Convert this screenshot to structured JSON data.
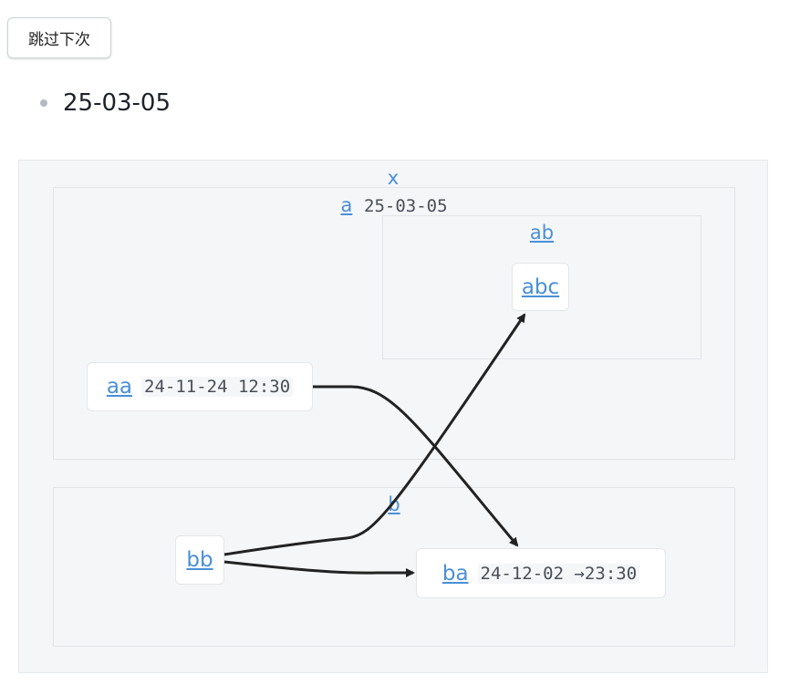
{
  "skip_button": {
    "label": "跳过下次"
  },
  "dates": [
    "25-03-05"
  ],
  "diagram": {
    "root": {
      "label": "x"
    },
    "group_a": {
      "link": "a",
      "date": "25-03-05"
    },
    "group_ab": {
      "link": "ab"
    },
    "group_b": {
      "link": "b"
    },
    "nodes": {
      "abc": {
        "link": "abc"
      },
      "aa": {
        "link": "aa",
        "time": "24-11-24 12:30"
      },
      "bb": {
        "link": "bb"
      },
      "ba": {
        "link": "ba",
        "time": "24-12-02 →23:30"
      }
    },
    "edge_color": "#222222",
    "link_color": "#4a8fd8"
  }
}
